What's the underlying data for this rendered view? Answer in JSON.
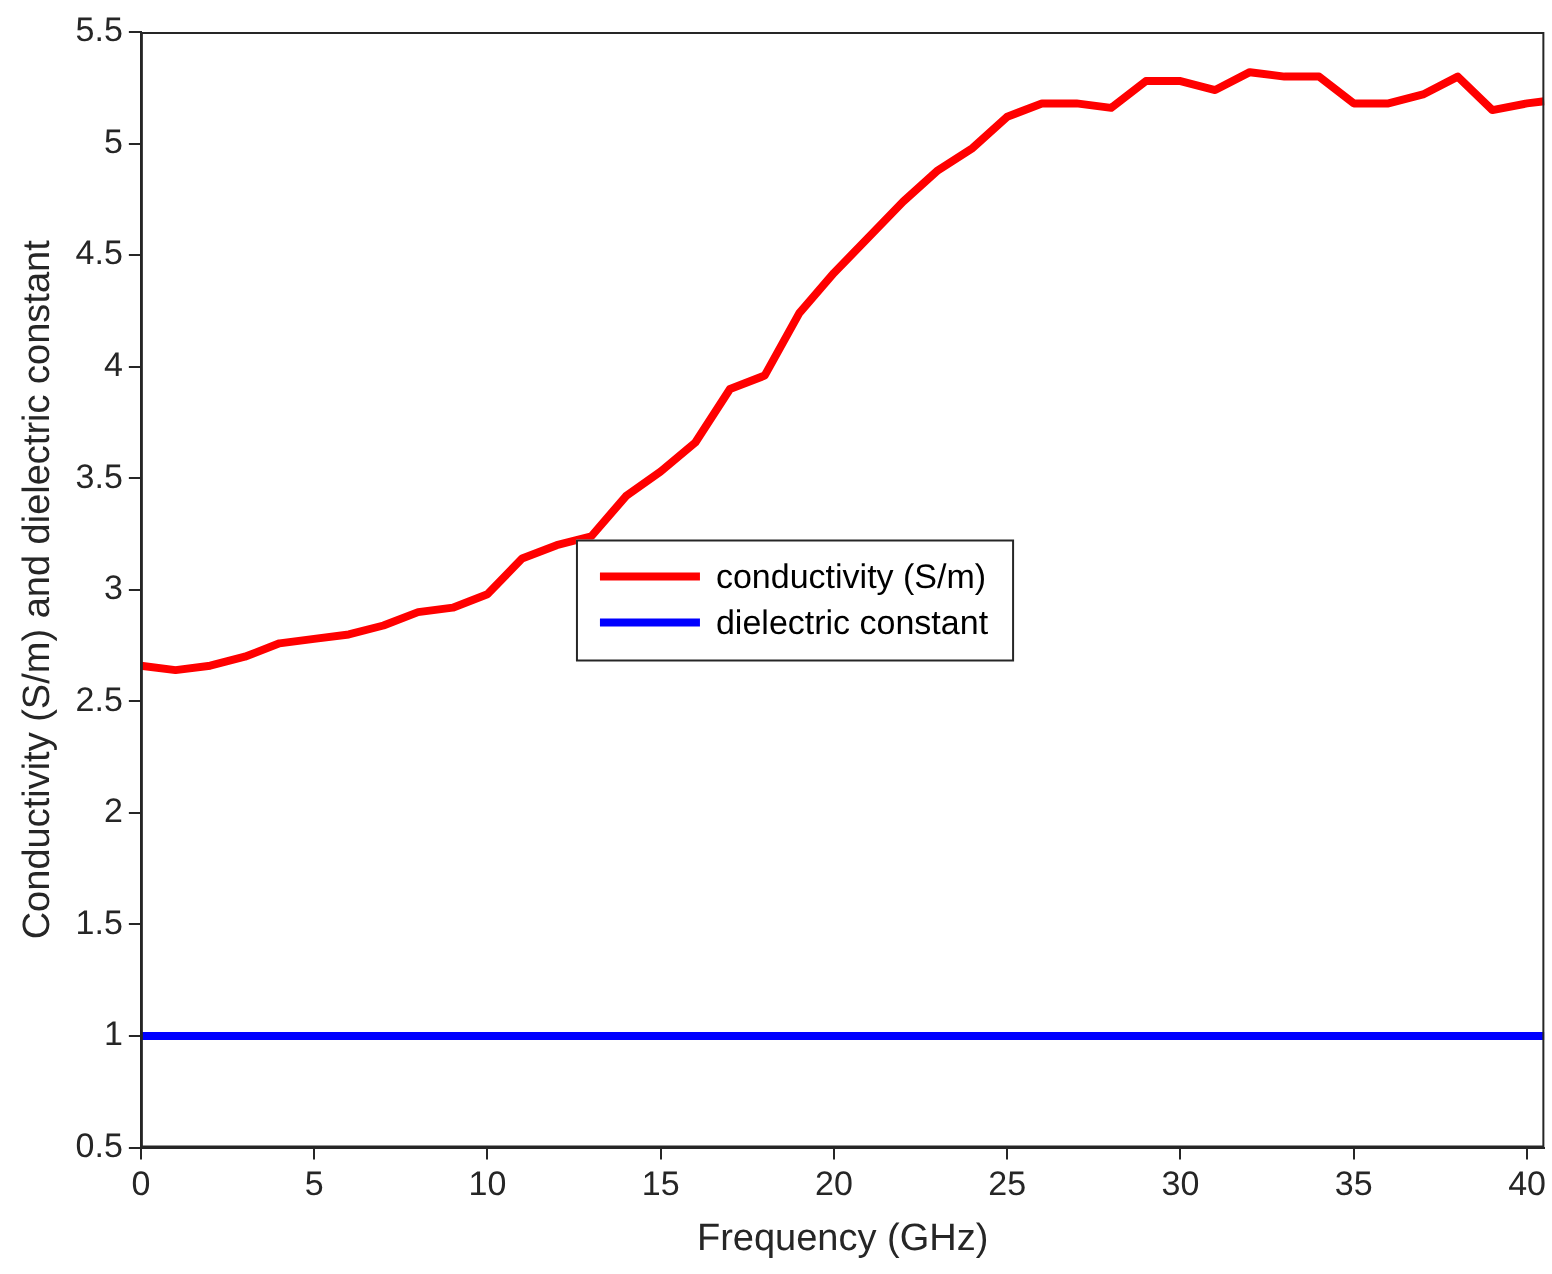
{
  "chart_data": {
    "type": "line",
    "xlabel": "Frequency (GHz)",
    "ylabel": "Conductivity (S/m) and dielectric constant",
    "x": [
      0,
      1,
      2,
      3,
      4,
      5,
      6,
      7,
      8,
      9,
      10,
      11,
      12,
      13,
      14,
      15,
      16,
      17,
      18,
      19,
      20,
      21,
      22,
      23,
      24,
      25,
      26,
      27,
      28,
      29,
      30,
      31,
      32,
      33,
      34,
      35,
      36,
      37,
      38,
      39,
      40,
      40.5
    ],
    "series": [
      {
        "name": "conductivity (S/m)",
        "color": "#ff0000",
        "values": [
          2.66,
          2.64,
          2.66,
          2.7,
          2.76,
          2.78,
          2.8,
          2.84,
          2.9,
          2.92,
          2.98,
          3.14,
          3.2,
          3.24,
          3.42,
          3.53,
          3.66,
          3.9,
          3.96,
          4.24,
          4.42,
          4.58,
          4.74,
          4.88,
          4.98,
          5.12,
          5.18,
          5.18,
          5.16,
          5.28,
          5.28,
          5.24,
          5.32,
          5.3,
          5.3,
          5.18,
          5.18,
          5.22,
          5.3,
          5.15,
          5.18,
          5.19
        ]
      },
      {
        "name": "dielectric constant",
        "color": "#0000ff",
        "values": [
          1,
          1,
          1,
          1,
          1,
          1,
          1,
          1,
          1,
          1,
          1,
          1,
          1,
          1,
          1,
          1,
          1,
          1,
          1,
          1,
          1,
          1,
          1,
          1,
          1,
          1,
          1,
          1,
          1,
          1,
          1,
          1,
          1,
          1,
          1,
          1,
          1,
          1,
          1,
          1,
          1,
          1
        ]
      }
    ],
    "xlim": [
      0,
      40.5
    ],
    "xticks": [
      0,
      5,
      10,
      15,
      20,
      25,
      30,
      35,
      40
    ],
    "ylim": [
      0.5,
      5.5
    ],
    "yticks": [
      0.5,
      1,
      1.5,
      2,
      2.5,
      3,
      3.5,
      4,
      4.5,
      5,
      5.5
    ],
    "grid": false,
    "legend": "center",
    "marker": "none",
    "line_style": "solid"
  }
}
